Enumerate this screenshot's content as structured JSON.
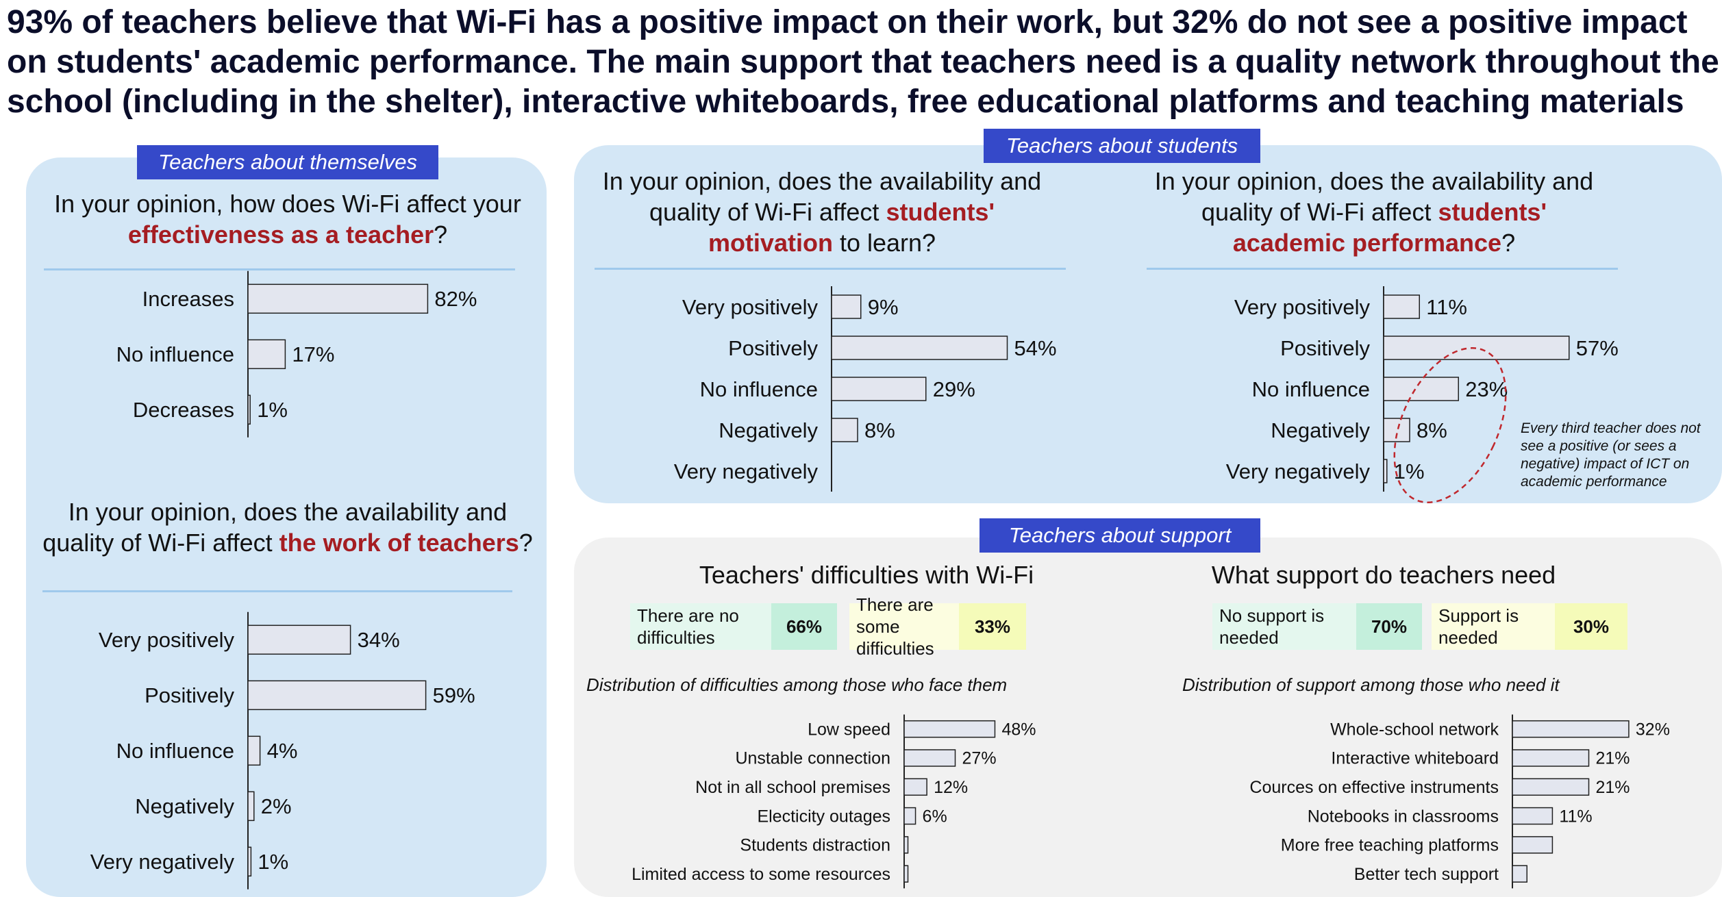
{
  "headline": "93% of teachers believe that Wi-Fi has a positive impact on their work, but 32% do not see a positive impact on students' academic performance. The main support that teachers need is a quality network throughout the school (including in the shelter), interactive whiteboards, free educational platforms and teaching materials",
  "sections": {
    "themselves": {
      "tag": "Teachers about themselves",
      "q1": {
        "pre": "In your opinion, how does Wi-Fi affect your ",
        "hl": "effectiveness as a teacher",
        "post": "?"
      },
      "q2": {
        "pre": "In your opinion, does the availability and quality of Wi-Fi affect ",
        "hl": "the work of teachers",
        "post": "?"
      }
    },
    "students": {
      "tag": "Teachers about students",
      "q1": {
        "pre": "In your opinion, does the availability and quality of Wi-Fi affect ",
        "hl": "students' motivation",
        "post": " to learn?"
      },
      "q2": {
        "pre": "In your opinion, does the availability and quality of Wi-Fi affect ",
        "hl": "students' academic performance",
        "post": "?"
      },
      "note": "Every third teacher does not see a positive (or sees a negative) impact of ICT on academic performance"
    },
    "support": {
      "tag": "Teachers about support",
      "difficulties_title": "Teachers' difficulties with Wi-Fi",
      "support_title": "What support do teachers need",
      "boxes_difficulties": [
        {
          "label": "There are no difficulties",
          "value": "66%"
        },
        {
          "label": "There are some difficulties",
          "value": "33%"
        }
      ],
      "boxes_support": [
        {
          "label": "No support is needed",
          "value": "70%"
        },
        {
          "label": "Support is needed",
          "value": "30%"
        }
      ],
      "dist_difficulties": "Distribution of difficulties among those who face them",
      "dist_support": "Distribution of support among those who need it"
    }
  },
  "colors": {
    "bar_fill": "#e3e6ef",
    "bar_stroke": "#222222",
    "highlight": "#a51d22",
    "tag_bg": "#3549c9"
  },
  "chart_data": [
    {
      "id": "effectiveness",
      "type": "bar",
      "categories": [
        "Increases",
        "No influence",
        "Decreases"
      ],
      "values": [
        82,
        17,
        1
      ],
      "labels": [
        "82%",
        "17%",
        "1%"
      ]
    },
    {
      "id": "work",
      "type": "bar",
      "categories": [
        "Very positively",
        "Positively",
        "No influence",
        "Negatively",
        "Very negatively"
      ],
      "values": [
        34,
        59,
        4,
        2,
        1
      ],
      "labels": [
        "34%",
        "59%",
        "4%",
        "2%",
        "1%"
      ]
    },
    {
      "id": "motivation",
      "type": "bar",
      "categories": [
        "Very positively",
        "Positively",
        "No influence",
        "Negatively",
        "Very negatively"
      ],
      "values": [
        9,
        54,
        29,
        8,
        0
      ],
      "labels": [
        "9%",
        "54%",
        "29%",
        "8%",
        ""
      ]
    },
    {
      "id": "performance",
      "type": "bar",
      "categories": [
        "Very positively",
        "Positively",
        "No influence",
        "Negatively",
        "Very negatively"
      ],
      "values": [
        11,
        57,
        23,
        8,
        1
      ],
      "labels": [
        "11%",
        "57%",
        "23%",
        "8%",
        "1%"
      ]
    },
    {
      "id": "difficulties",
      "type": "bar",
      "categories": [
        "Low speed",
        "Unstable connection",
        "Not in all school premises",
        "Electicity outages",
        "Students distraction",
        "Limited access to some resources"
      ],
      "values": [
        48,
        27,
        12,
        6,
        2,
        2
      ],
      "labels": [
        "48%",
        "27%",
        "12%",
        "6%",
        "",
        ""
      ]
    },
    {
      "id": "support",
      "type": "bar",
      "categories": [
        "Whole-school network",
        "Interactive whiteboard",
        "Cources on effective instruments",
        "Notebooks in classrooms",
        "More free teaching platforms",
        "Better tech support"
      ],
      "values": [
        32,
        21,
        21,
        11,
        11,
        4
      ],
      "labels": [
        "32%",
        "21%",
        "21%",
        "11%",
        "",
        ""
      ]
    }
  ]
}
